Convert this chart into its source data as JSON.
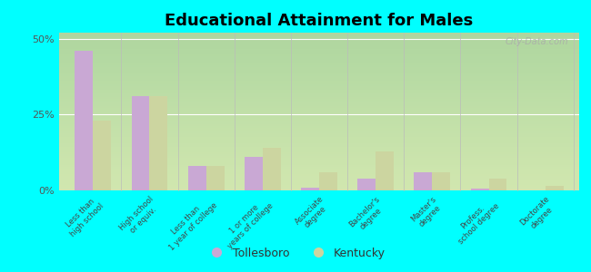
{
  "title": "Educational Attainment for Males",
  "categories": [
    "Less than\nhigh school",
    "High school\nor equiv.",
    "Less than\n1 year of college",
    "1 or more\nyears of college",
    "Associate\ndegree",
    "Bachelor's\ndegree",
    "Master's\ndegree",
    "Profess.\nschool degree",
    "Doctorate\ndegree"
  ],
  "tollesboro": [
    46,
    31,
    8,
    11,
    1,
    4,
    6,
    0.5,
    0
  ],
  "kentucky": [
    23,
    31,
    8,
    14,
    6,
    13,
    6,
    4,
    1.5
  ],
  "color_tollesboro": "#c9a8d4",
  "color_kentucky": "#ccd5a0",
  "background_plot_top": "#e8f0d0",
  "background_plot_bottom": "#d8e8b8",
  "background_fig": "#00ffff",
  "ylim": [
    0,
    52
  ],
  "yticks": [
    0,
    25,
    50
  ],
  "ytick_labels": [
    "0%",
    "25%",
    "50%"
  ],
  "watermark": "City-Data.com",
  "legend_tollesboro": "Tollesboro",
  "legend_kentucky": "Kentucky",
  "bar_width": 0.32
}
